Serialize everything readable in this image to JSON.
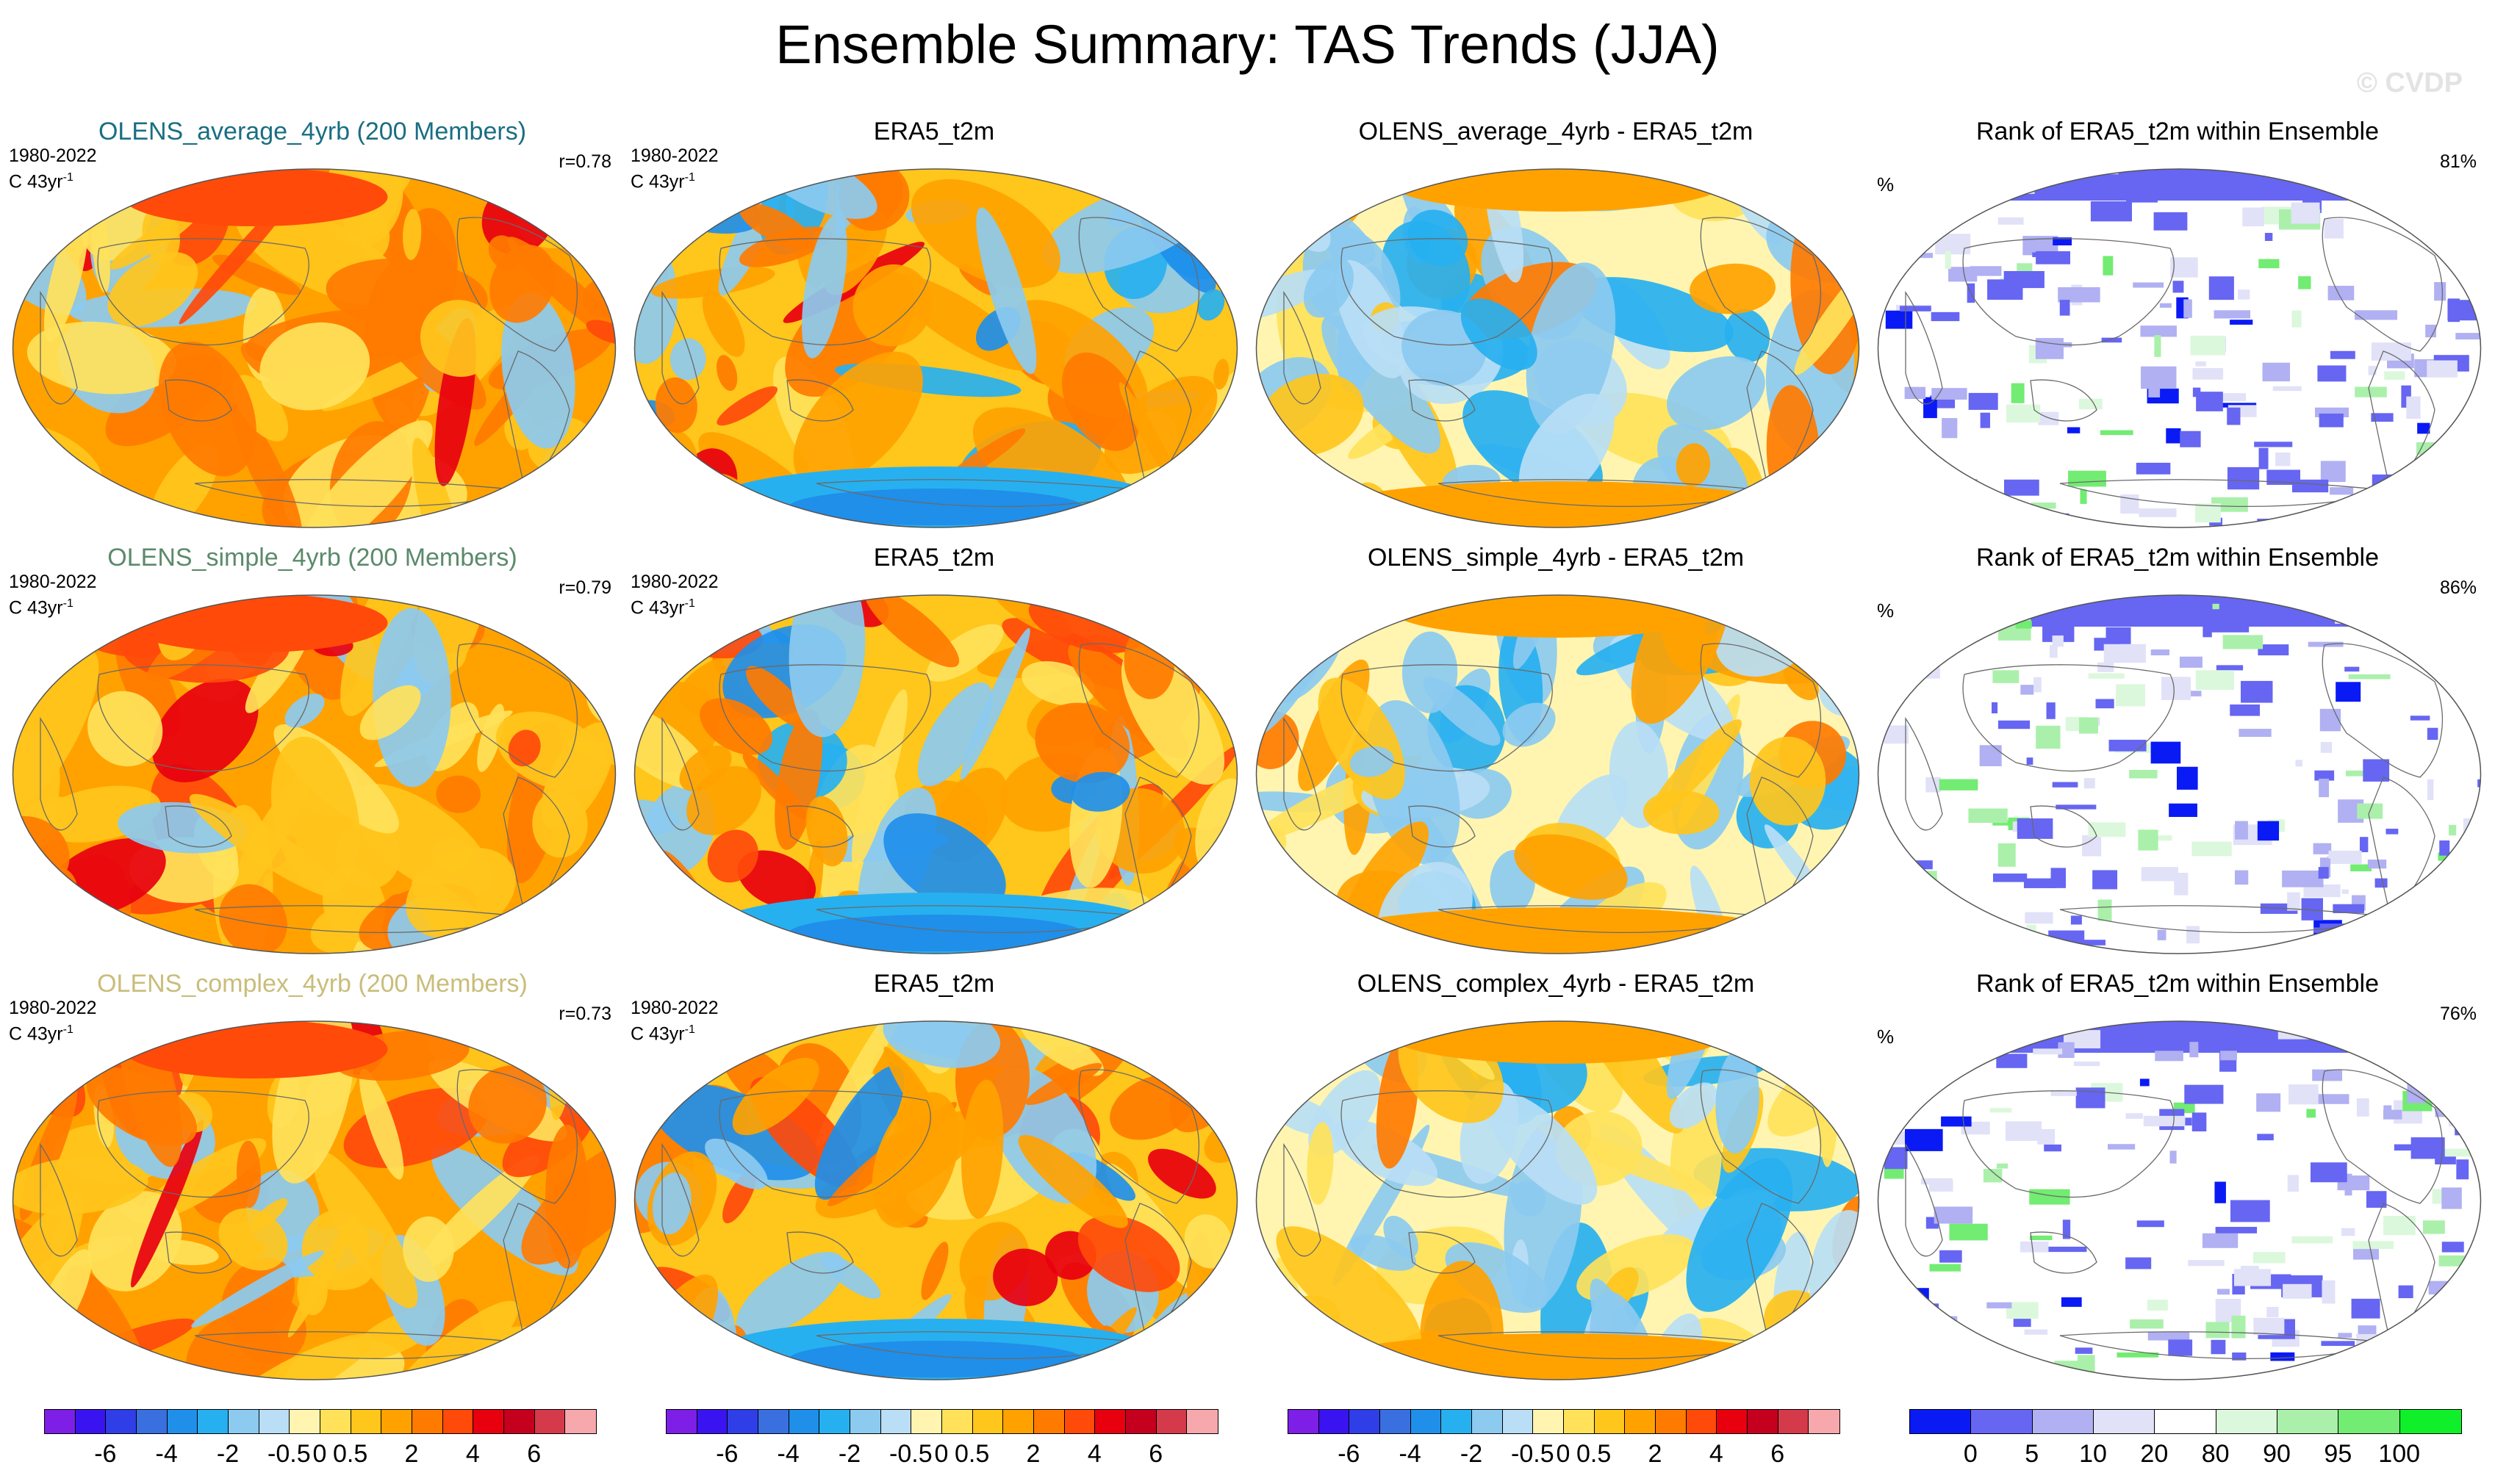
{
  "title": "Ensemble Summary: TAS Trends (JJA)",
  "watermark": "© CVDP",
  "rows": [
    {
      "model": {
        "title": "OLENS_average_4yrb (200 Members)",
        "title_color": "#1a6e82",
        "period": "1980-2022",
        "units": "C 43yr",
        "units_sup": "-1",
        "r": "r=0.78"
      },
      "obs": {
        "title": "ERA5_t2m",
        "period": "1980-2022",
        "units": "C 43yr",
        "units_sup": "-1"
      },
      "diff": {
        "title": "OLENS_average_4yrb - ERA5_t2m"
      },
      "rank": {
        "title": "Rank of ERA5_t2m within Ensemble",
        "unit": "%",
        "pct": "81%"
      }
    },
    {
      "model": {
        "title": "OLENS_simple_4yrb (200 Members)",
        "title_color": "#5b8a6b",
        "period": "1980-2022",
        "units": "C 43yr",
        "units_sup": "-1",
        "r": "r=0.79"
      },
      "obs": {
        "title": "ERA5_t2m",
        "period": "1980-2022",
        "units": "C 43yr",
        "units_sup": "-1"
      },
      "diff": {
        "title": "OLENS_simple_4yrb - ERA5_t2m"
      },
      "rank": {
        "title": "Rank of ERA5_t2m within Ensemble",
        "unit": "%",
        "pct": "86%"
      }
    },
    {
      "model": {
        "title": "OLENS_complex_4yrb (200 Members)",
        "title_color": "#c9bd7a",
        "period": "1980-2022",
        "units": "C 43yr",
        "units_sup": "-1",
        "r": "r=0.73"
      },
      "obs": {
        "title": "ERA5_t2m",
        "period": "1980-2022",
        "units": "C 43yr",
        "units_sup": "-1"
      },
      "diff": {
        "title": "OLENS_complex_4yrb - ERA5_t2m"
      },
      "rank": {
        "title": "Rank of ERA5_t2m within Ensemble",
        "unit": "%",
        "pct": "76%"
      }
    }
  ],
  "trend_colorbar": {
    "colors": [
      "#7d1fe6",
      "#3a14f0",
      "#2f3ee6",
      "#3a6fe0",
      "#1f8fea",
      "#27b0f0",
      "#8ccaf0",
      "#b9def5",
      "#fff5b0",
      "#ffe25a",
      "#ffc61c",
      "#ffa200",
      "#ff7b00",
      "#ff4a0a",
      "#e8000f",
      "#c4001e",
      "#d53a4a",
      "#f6a8ad"
    ],
    "labels": [
      "-6",
      "-4",
      "-2",
      "-0.5",
      "0",
      "0.5",
      "2",
      "4",
      "6"
    ]
  },
  "rank_colorbar": {
    "colors": [
      "#0a1af5",
      "#6666f2",
      "#b0b0f2",
      "#e1e1f8",
      "#ffffff",
      "#dcf8dc",
      "#aaf0aa",
      "#72ec72",
      "#10f02a"
    ],
    "labels": [
      "0",
      "5",
      "10",
      "20",
      "80",
      "90",
      "95",
      "100"
    ]
  }
}
